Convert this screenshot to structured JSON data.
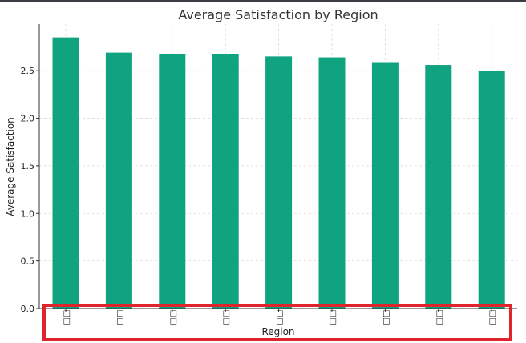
{
  "chart_data": {
    "type": "bar",
    "title": "Average Satisfaction by Region",
    "xlabel": "Region",
    "ylabel": "Average Satisfaction",
    "categories": [
      "□□",
      "□□",
      "□□",
      "□□",
      "□□",
      "□□",
      "□□",
      "□□",
      "□□"
    ],
    "values": [
      2.85,
      2.69,
      2.67,
      2.67,
      2.65,
      2.64,
      2.59,
      2.56,
      2.5
    ],
    "ylim": [
      0,
      2.99
    ],
    "yticks": [
      "0.0",
      "0.5",
      "1.0",
      "1.5",
      "2.0",
      "2.5"
    ],
    "grid": true,
    "bar_color": "#10a37f",
    "highlight_color": "#e0242b"
  }
}
